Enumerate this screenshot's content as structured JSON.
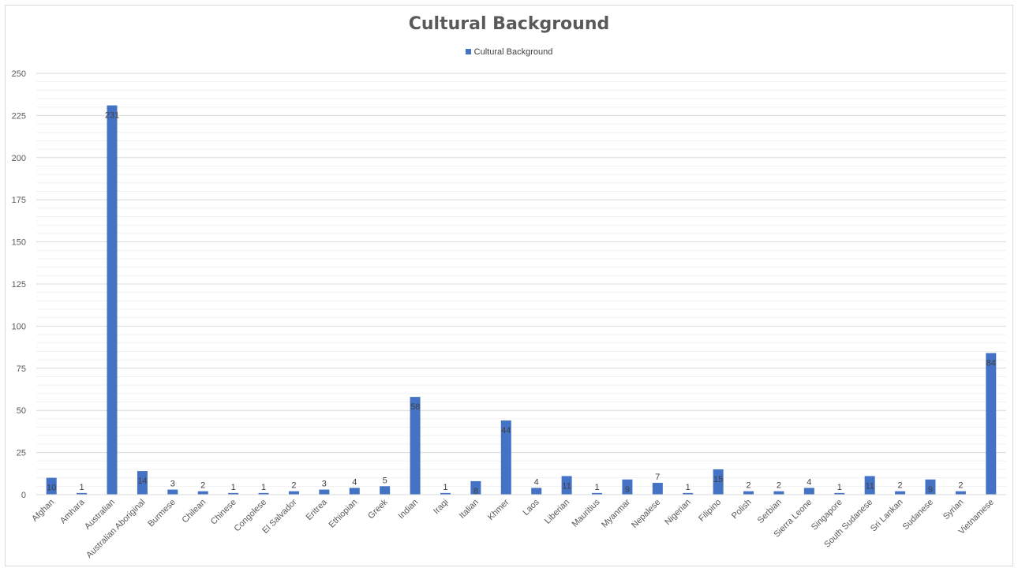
{
  "chart_data": {
    "type": "bar",
    "title": "Cultural Background",
    "legend": {
      "position": "top",
      "entries": [
        "Cultural Background"
      ]
    },
    "color": "#4472c4",
    "grid": true,
    "ylim": [
      0,
      250
    ],
    "yticks": [
      0,
      25,
      50,
      75,
      100,
      125,
      150,
      175,
      200,
      225,
      250
    ],
    "categories": [
      "Afghan",
      "Amhara",
      "Australian",
      "Australian Aboriginal",
      "Burmese",
      "Chilean",
      "Chinese",
      "Congolese",
      "El Salvador",
      "Eritrea",
      "Ethiopian",
      "Greek",
      "Indian",
      "Iraqi",
      "Italian",
      "Khmer",
      "Laos",
      "Liberian",
      "Mauritius",
      "Myanmar",
      "Nepalese",
      "Nigerian",
      "Filipino",
      "Polish",
      "Serbian",
      "Sierra Leone",
      "Singapore",
      "South Sudanese",
      "Sri Lankan",
      "Sudanese",
      "Syrian",
      "Vietnamese"
    ],
    "series": [
      {
        "name": "Cultural Background",
        "values": [
          10,
          1,
          231,
          14,
          3,
          2,
          1,
          1,
          2,
          3,
          4,
          5,
          58,
          1,
          8,
          44,
          4,
          11,
          1,
          9,
          7,
          1,
          15,
          2,
          2,
          4,
          1,
          11,
          2,
          9,
          2,
          84
        ]
      }
    ]
  }
}
